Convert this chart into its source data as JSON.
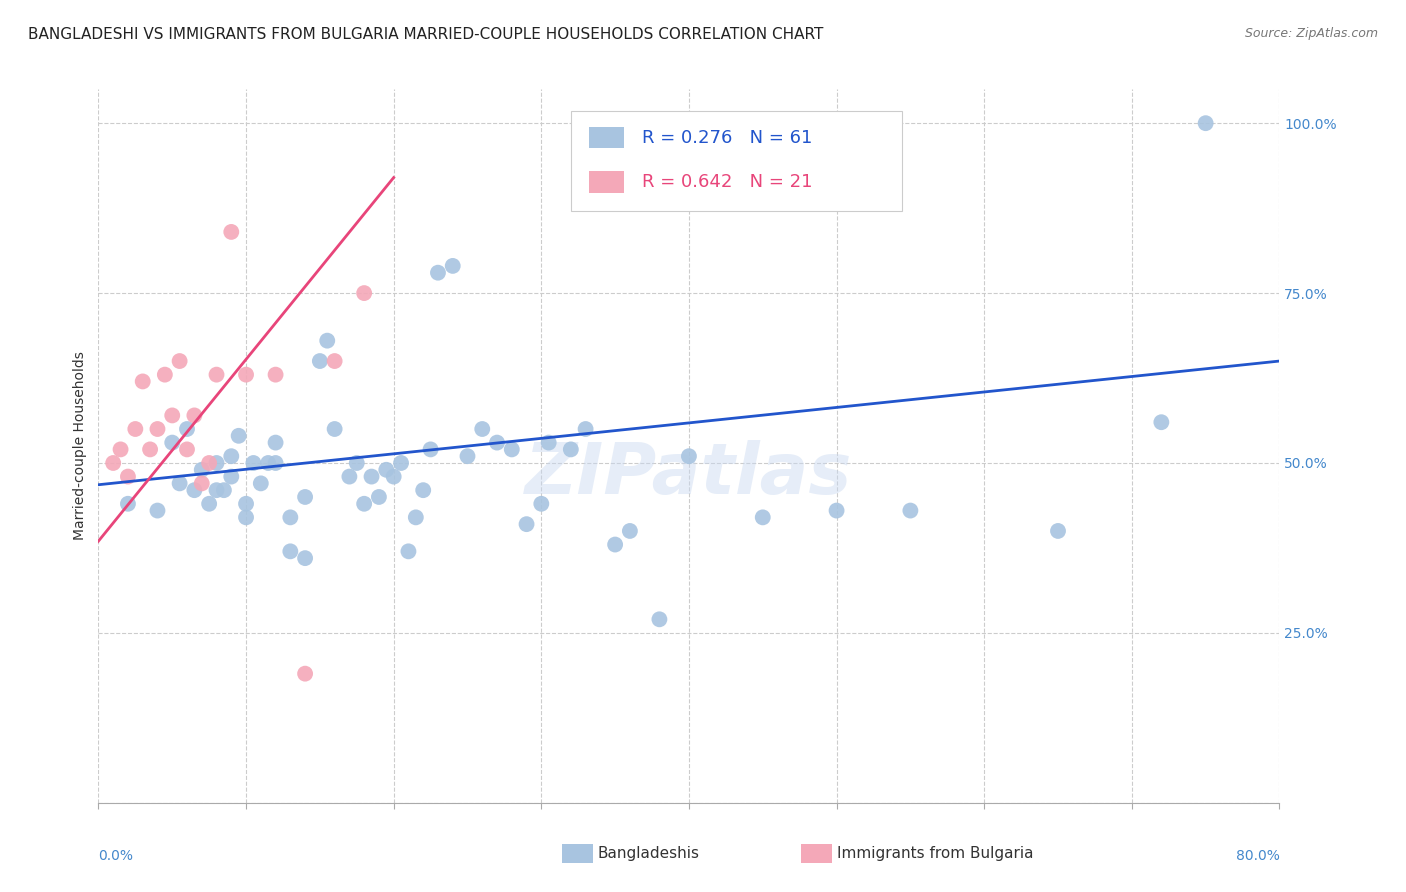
{
  "title": "BANGLADESHI VS IMMIGRANTS FROM BULGARIA MARRIED-COUPLE HOUSEHOLDS CORRELATION CHART",
  "source": "Source: ZipAtlas.com",
  "ylabel": "Married-couple Households",
  "x_min": 0.0,
  "x_max": 0.8,
  "y_min": 0.0,
  "y_max": 1.05,
  "x_ticks": [
    0.0,
    0.1,
    0.2,
    0.3,
    0.4,
    0.5,
    0.6,
    0.7,
    0.8
  ],
  "y_ticks": [
    0.0,
    0.25,
    0.5,
    0.75,
    1.0
  ],
  "y_tick_labels": [
    "",
    "25.0%",
    "50.0%",
    "75.0%",
    "100.0%"
  ],
  "blue_R": 0.276,
  "blue_N": 61,
  "pink_R": 0.642,
  "pink_N": 21,
  "blue_color": "#a8c4e0",
  "pink_color": "#f4a8b8",
  "blue_line_color": "#2255cc",
  "pink_line_color": "#e8457a",
  "watermark": "ZIPatlas",
  "blue_scatter_x": [
    0.02,
    0.04,
    0.05,
    0.055,
    0.06,
    0.065,
    0.07,
    0.075,
    0.08,
    0.08,
    0.085,
    0.09,
    0.09,
    0.095,
    0.1,
    0.1,
    0.105,
    0.11,
    0.115,
    0.12,
    0.12,
    0.13,
    0.13,
    0.14,
    0.14,
    0.15,
    0.155,
    0.16,
    0.17,
    0.175,
    0.18,
    0.185,
    0.19,
    0.195,
    0.2,
    0.205,
    0.21,
    0.215,
    0.22,
    0.225,
    0.23,
    0.24,
    0.25,
    0.26,
    0.27,
    0.28,
    0.29,
    0.3,
    0.305,
    0.32,
    0.33,
    0.35,
    0.36,
    0.38,
    0.4,
    0.45,
    0.5,
    0.55,
    0.65,
    0.72,
    0.75
  ],
  "blue_scatter_y": [
    0.44,
    0.43,
    0.53,
    0.47,
    0.55,
    0.46,
    0.49,
    0.44,
    0.46,
    0.5,
    0.46,
    0.48,
    0.51,
    0.54,
    0.42,
    0.44,
    0.5,
    0.47,
    0.5,
    0.5,
    0.53,
    0.37,
    0.42,
    0.36,
    0.45,
    0.65,
    0.68,
    0.55,
    0.48,
    0.5,
    0.44,
    0.48,
    0.45,
    0.49,
    0.48,
    0.5,
    0.37,
    0.42,
    0.46,
    0.52,
    0.78,
    0.79,
    0.51,
    0.55,
    0.53,
    0.52,
    0.41,
    0.44,
    0.53,
    0.52,
    0.55,
    0.38,
    0.4,
    0.27,
    0.51,
    0.42,
    0.43,
    0.43,
    0.4,
    0.56,
    1.0
  ],
  "pink_scatter_x": [
    0.01,
    0.015,
    0.02,
    0.025,
    0.03,
    0.035,
    0.04,
    0.045,
    0.05,
    0.055,
    0.06,
    0.065,
    0.07,
    0.075,
    0.08,
    0.09,
    0.1,
    0.12,
    0.14,
    0.16,
    0.18
  ],
  "pink_scatter_y": [
    0.5,
    0.52,
    0.48,
    0.55,
    0.62,
    0.52,
    0.55,
    0.63,
    0.57,
    0.65,
    0.52,
    0.57,
    0.47,
    0.5,
    0.63,
    0.84,
    0.63,
    0.63,
    0.19,
    0.65,
    0.75
  ],
  "blue_trend_x": [
    0.0,
    0.8
  ],
  "blue_trend_y": [
    0.468,
    0.65
  ],
  "pink_trend_x": [
    0.0,
    0.2
  ],
  "pink_trend_y": [
    0.385,
    0.92
  ],
  "background_color": "#ffffff",
  "grid_color": "#cccccc",
  "tick_color": "#4488cc",
  "title_fontsize": 11,
  "axis_label_fontsize": 10,
  "tick_fontsize": 10,
  "legend_fontsize": 12
}
